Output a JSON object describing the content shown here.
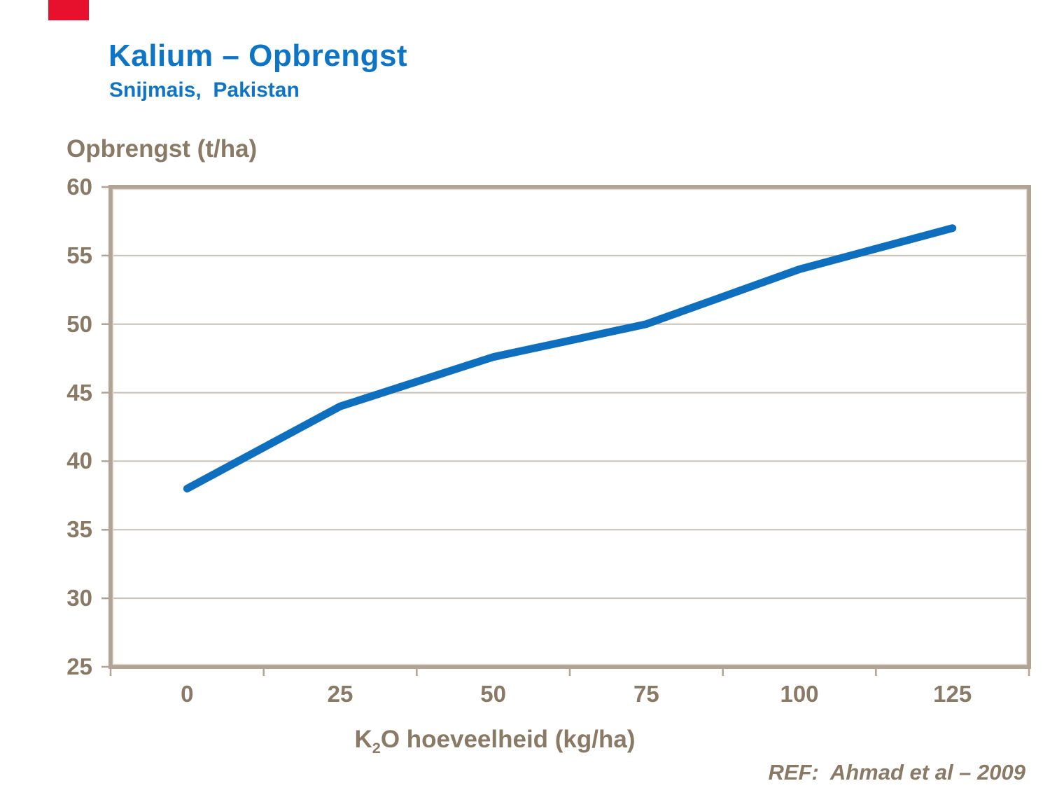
{
  "slide": {
    "title": "Kalium – Opbrengst",
    "subtitle": "Snijmais,  Pakistan",
    "reference": "REF:  Ahmad et al – 2009"
  },
  "colors": {
    "accent_red": "#E8112D",
    "title_blue": "#0E74C6",
    "text_taupe": "#8A7A65",
    "gridline": "#C9BFB2",
    "border": "#B1A495",
    "border_light": "#E3DCD2",
    "line_blue": "#0D6FBE"
  },
  "chart_data": {
    "type": "line",
    "title": "Kalium – Opbrengst (Snijmais, Pakistan)",
    "ylabel": "Opbrengst (t/ha)",
    "xlabel_text": "K2O hoeveelheid (kg/ha)",
    "xlabel": {
      "base": "K",
      "sub": "2",
      "rest": "O hoeveelheid (kg/ha)"
    },
    "categories": [
      "0",
      "25",
      "50",
      "75",
      "100",
      "125"
    ],
    "x_values": [
      0,
      25,
      50,
      75,
      100,
      125
    ],
    "series": [
      {
        "name": "Opbrengst",
        "values": [
          38,
          44,
          47.6,
          50,
          54,
          57
        ]
      }
    ],
    "yticks": [
      25,
      30,
      35,
      40,
      45,
      50,
      55,
      60
    ],
    "ylim": [
      25,
      60
    ],
    "xlim_categories": true,
    "grid": "horizontal",
    "legend": "none"
  }
}
